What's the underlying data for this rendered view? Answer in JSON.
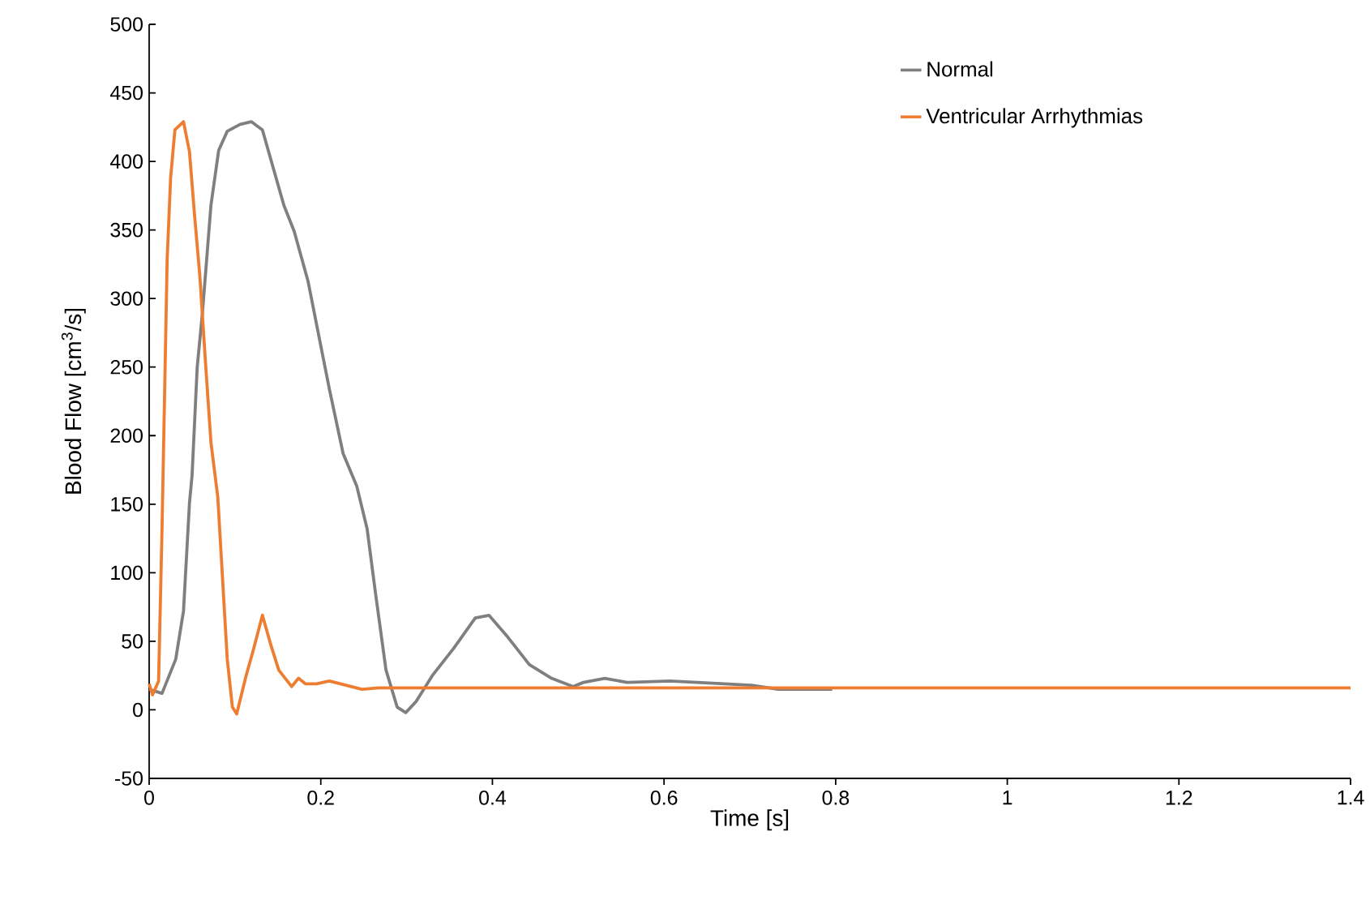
{
  "chart_data": {
    "type": "line",
    "xlabel": "Time [s]",
    "ylabel": "Blood Flow [cm$^{3}$/s]",
    "xlim": [
      0,
      1.4
    ],
    "ylim": [
      -50,
      500
    ],
    "xticks": [
      0,
      0.2,
      0.4,
      0.6,
      0.8,
      1,
      1.2,
      1.4
    ],
    "yticks": [
      -50,
      0,
      50,
      100,
      150,
      200,
      250,
      300,
      350,
      400,
      450,
      500
    ],
    "legend": "top right",
    "series": [
      {
        "name": "Normal",
        "color": "#7f7f7f",
        "x": [
          0,
          0.015,
          0.031,
          0.04,
          0.047,
          0.05,
          0.056,
          0.062,
          0.072,
          0.081,
          0.091,
          0.106,
          0.119,
          0.132,
          0.157,
          0.169,
          0.185,
          0.21,
          0.226,
          0.242,
          0.254,
          0.264,
          0.276,
          0.289,
          0.299,
          0.311,
          0.33,
          0.355,
          0.38,
          0.396,
          0.418,
          0.443,
          0.469,
          0.494,
          0.506,
          0.531,
          0.557,
          0.607,
          0.639,
          0.702,
          0.733,
          0.796
        ],
        "values": [
          15,
          12,
          37,
          72,
          151,
          171,
          250,
          289,
          368,
          408,
          422,
          427,
          429,
          423,
          368,
          349,
          313,
          234,
          187,
          163,
          132,
          84,
          29,
          2,
          -2,
          6,
          25,
          45,
          67,
          69,
          53,
          33,
          23,
          17,
          20,
          23,
          20,
          21,
          20,
          18,
          15,
          15
        ]
      },
      {
        "name": "Ventricular Arrhythmias",
        "color": "#ed7d31",
        "x": [
          0,
          0.004,
          0.011,
          0.015,
          0.021,
          0.025,
          0.03,
          0.04,
          0.047,
          0.053,
          0.059,
          0.066,
          0.072,
          0.08,
          0.084,
          0.091,
          0.097,
          0.102,
          0.113,
          0.122,
          0.132,
          0.141,
          0.151,
          0.166,
          0.174,
          0.182,
          0.195,
          0.21,
          0.248,
          0.267,
          1.4
        ],
        "values": [
          19,
          11,
          21,
          132,
          329,
          388,
          423,
          429,
          407,
          360,
          317,
          250,
          195,
          155,
          112,
          37,
          2,
          -3,
          25,
          45,
          69,
          49,
          29,
          17,
          23,
          19,
          19,
          21,
          15,
          16,
          16
        ]
      }
    ]
  }
}
